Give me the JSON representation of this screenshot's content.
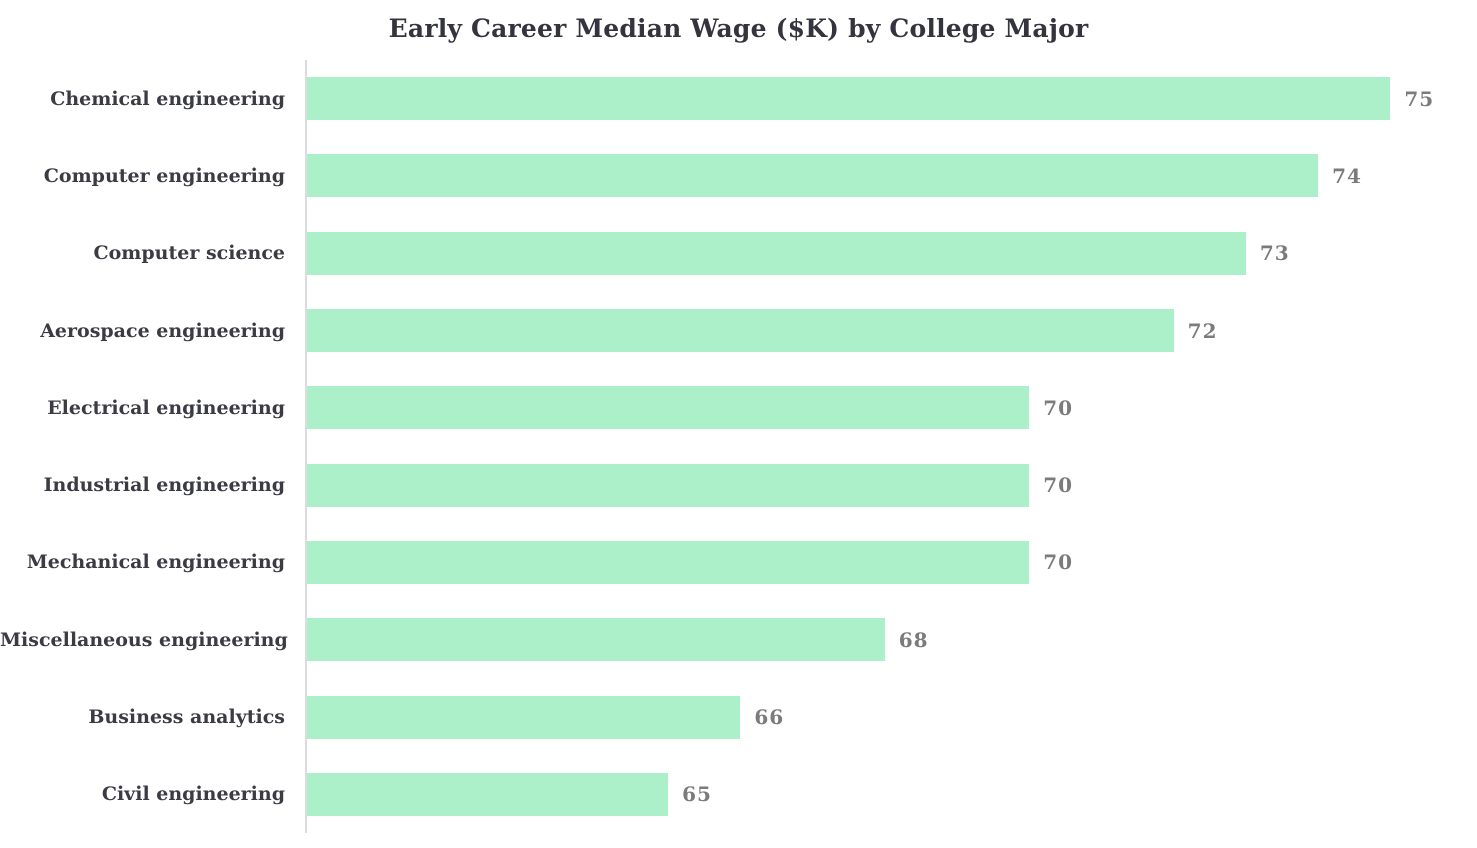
{
  "chart_data": {
    "type": "bar",
    "orientation": "horizontal",
    "title": "Early Career Median Wage ($K) by College Major",
    "categories": [
      "Chemical engineering",
      "Computer engineering",
      "Computer science",
      "Aerospace engineering",
      "Electrical engineering",
      "Industrial engineering",
      "Mechanical engineering",
      "Miscellaneous engineering",
      "Business analytics",
      "Civil engineering"
    ],
    "values": [
      75,
      74,
      73,
      72,
      70,
      70,
      70,
      68,
      66,
      65
    ],
    "value_labels": [
      "75",
      "74",
      "73",
      "72",
      "70",
      "70",
      "70",
      "68",
      "66",
      "65"
    ],
    "xlabel": "",
    "ylabel": "",
    "xlim": [
      60,
      76.2
    ],
    "grid": false,
    "legend": "none",
    "bar_color": "#acf0c9",
    "value_label_color": "#7b7b7b",
    "category_label_color": "#3b3b44",
    "title_color": "#34343e",
    "axis_line_color": "#dcdcdc"
  }
}
